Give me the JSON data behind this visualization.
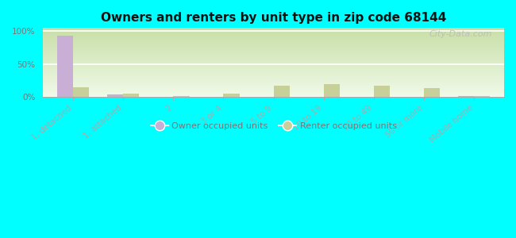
{
  "title": "Owners and renters by unit type in zip code 68144",
  "categories": [
    "1, detached",
    "1, attached",
    "2",
    "3 or 4",
    "5 to 9",
    "10 to 19",
    "20 to 49",
    "50 or more",
    "Mobile home"
  ],
  "owner_values": [
    93,
    4,
    0.5,
    0,
    0,
    0.5,
    0,
    0,
    1
  ],
  "renter_values": [
    14,
    5,
    1,
    5,
    17,
    19,
    17,
    13,
    1
  ],
  "owner_color": "#c9aed6",
  "renter_color": "#c8d09a",
  "figure_facecolor": "#00ffff",
  "grad_top_color": "#c8dfa8",
  "grad_bottom_color": "#f0fae8",
  "yticklabels": [
    "0%",
    "50%",
    "100%"
  ],
  "yticks": [
    0,
    50,
    100
  ],
  "ylim_max": 105,
  "bar_width": 0.32,
  "legend_owner": "Owner occupied units",
  "legend_renter": "Renter occupied units",
  "watermark": "City-Data.com",
  "title_fontsize": 11,
  "tick_fontsize": 7.5,
  "legend_fontsize": 8,
  "tick_color": "#777777",
  "grid_color": "#ffffff",
  "spine_color": "#aaaaaa"
}
